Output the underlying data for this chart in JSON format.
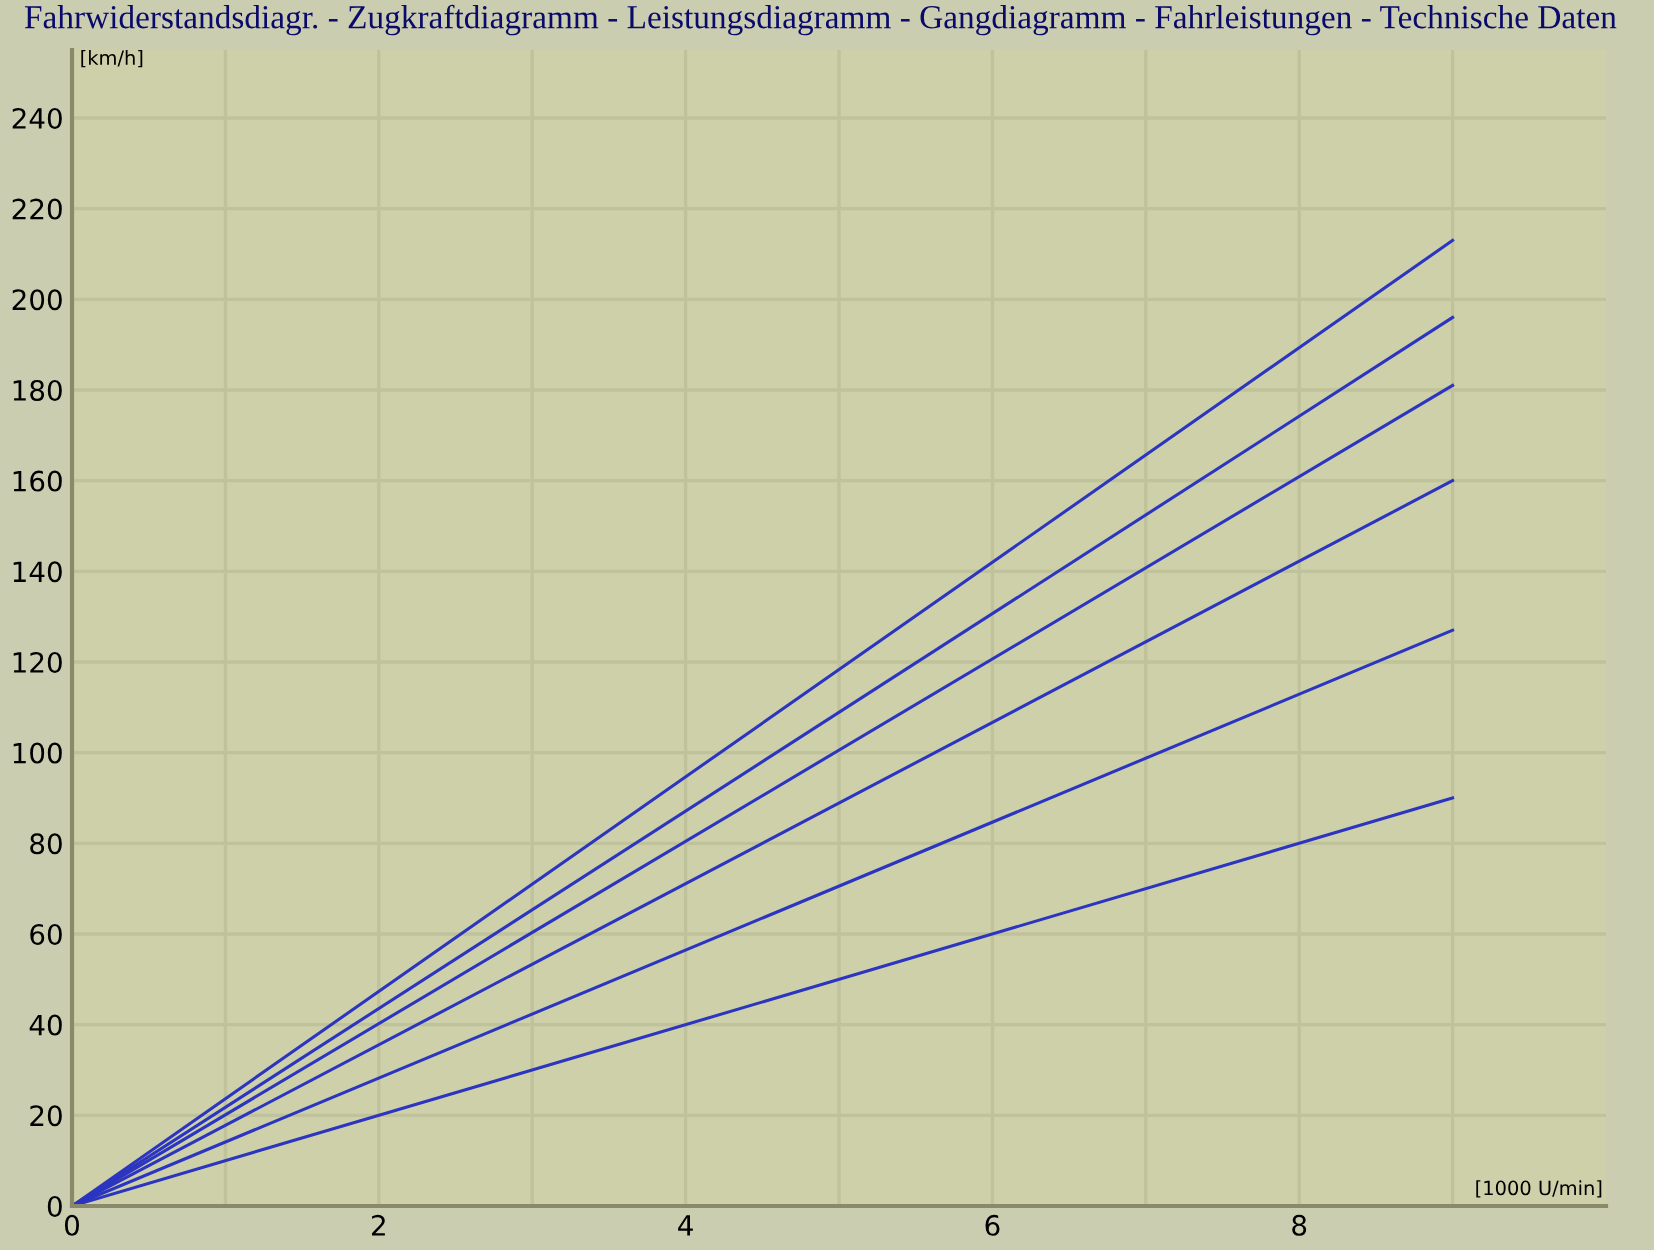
{
  "chart_data": {
    "type": "line",
    "annotations": [
      "Fahrwiderstandsdiagr. - Zugkraftdiagramm - Leistungsdiagramm - Gangdiagramm - Fahrleistungen - Technische Daten"
    ],
    "xlabel": "[1000 U/min]",
    "ylabel": "[km/h]",
    "xlim": [
      0,
      10
    ],
    "xticks": [
      {
        "value": 0,
        "label": "0"
      },
      {
        "value": 1,
        "label": null
      },
      {
        "value": 2,
        "label": "2"
      },
      {
        "value": 3,
        "label": null
      },
      {
        "value": 4,
        "label": "4"
      },
      {
        "value": 5,
        "label": null
      },
      {
        "value": 6,
        "label": "6"
      },
      {
        "value": 7,
        "label": null
      },
      {
        "value": 8,
        "label": "8"
      },
      {
        "value": 9,
        "label": null
      }
    ],
    "ylim": [
      0,
      255
    ],
    "yticks": [
      0,
      20,
      40,
      60,
      80,
      100,
      120,
      140,
      160,
      180,
      200,
      220,
      240
    ],
    "x": [
      0,
      9
    ],
    "grid": true,
    "marker": "none",
    "line_style": "solid",
    "series": [
      {
        "color": "#2c35c0",
        "values": [
          0,
          90
        ]
      },
      {
        "color": "#2c35c0",
        "values": [
          0,
          127
        ]
      },
      {
        "color": "#2c35c0",
        "values": [
          0,
          160
        ]
      },
      {
        "color": "#2c35c0",
        "values": [
          0,
          181
        ]
      },
      {
        "color": "#2c35c0",
        "values": [
          0,
          196
        ]
      },
      {
        "color": "#2c35c0",
        "values": [
          0,
          213
        ]
      }
    ]
  }
}
